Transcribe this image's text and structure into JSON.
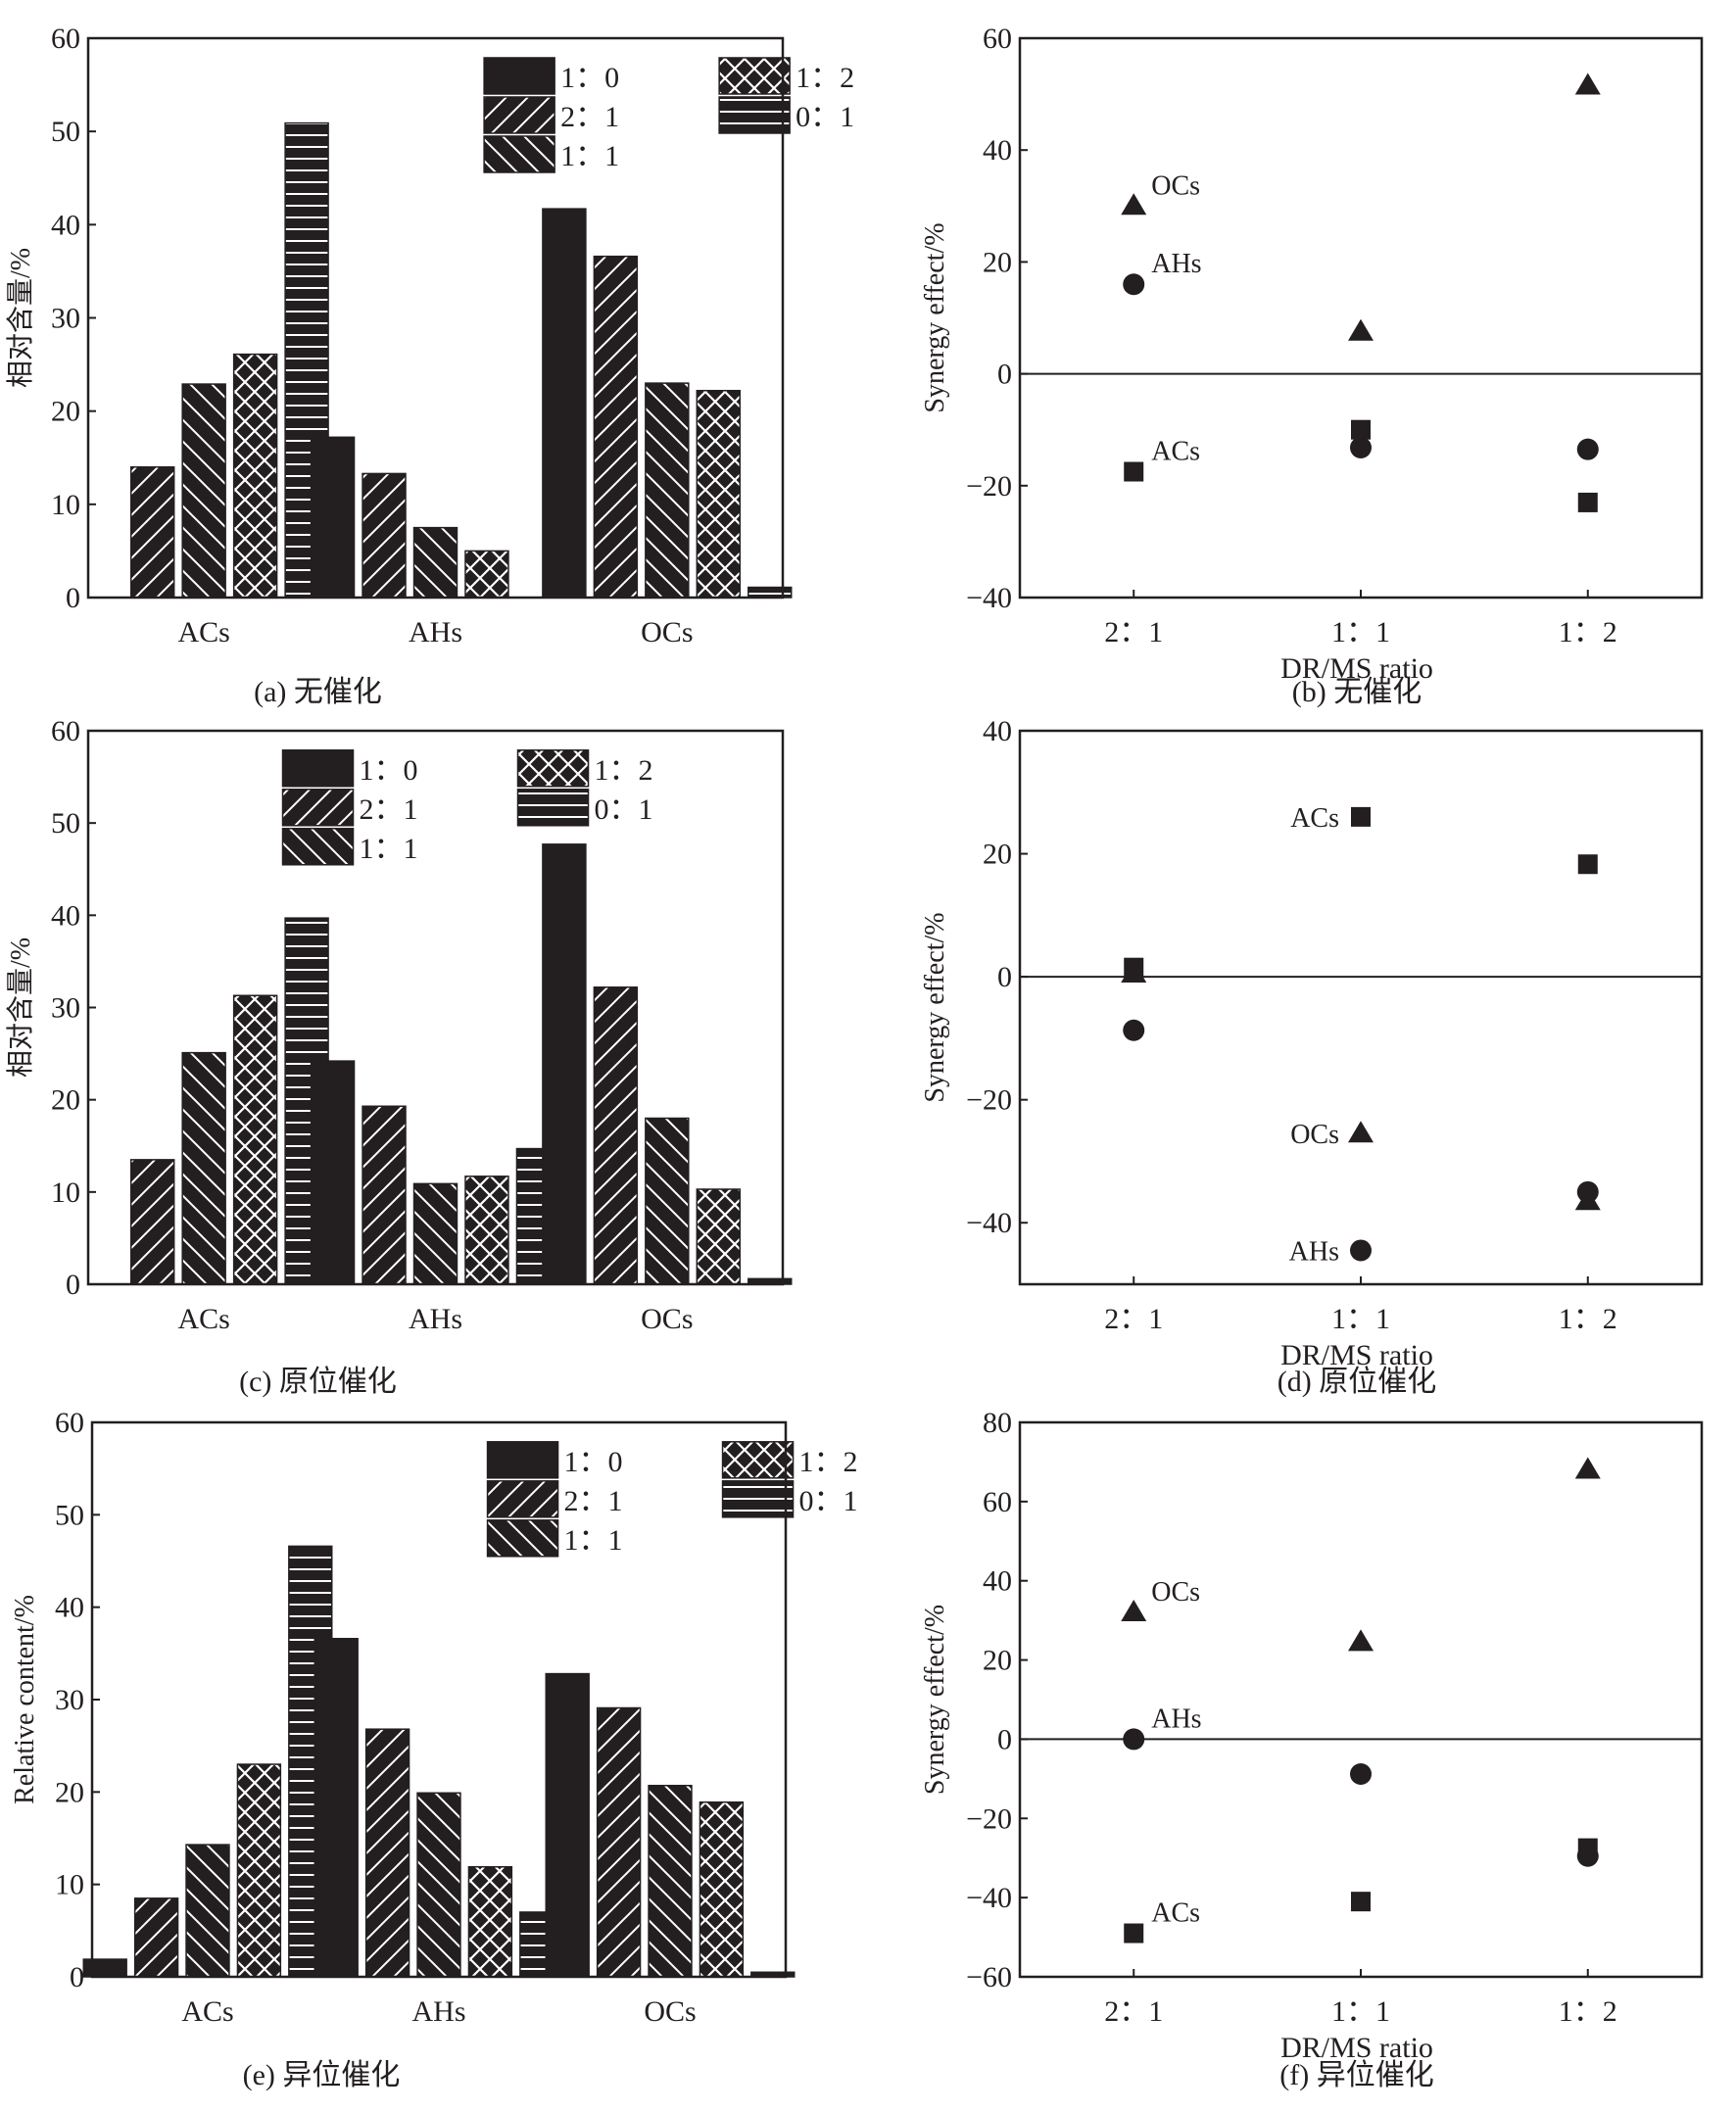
{
  "chart_data": [
    {
      "panel": "a",
      "type": "bar",
      "title": "",
      "caption": "(a) 无催化",
      "xlabel": "",
      "ylabel": "相对含量/%",
      "ylim": [
        0,
        60
      ],
      "yticks": [
        0,
        10,
        20,
        30,
        40,
        50,
        60
      ],
      "categories": [
        "ACs",
        "AHs",
        "OCs"
      ],
      "legend_position": "top-right",
      "series": [
        {
          "name": "1：0",
          "pattern": "solid",
          "values": [
            0,
            17.2,
            41.7
          ]
        },
        {
          "name": "2：1",
          "pattern": "slash",
          "values": [
            14.0,
            13.3,
            36.6
          ]
        },
        {
          "name": "1：1",
          "pattern": "backslash",
          "values": [
            22.9,
            7.5,
            23.0
          ]
        },
        {
          "name": "1：2",
          "pattern": "cross",
          "values": [
            26.1,
            5.0,
            22.2
          ]
        },
        {
          "name": "0：1",
          "pattern": "horizontal",
          "values": [
            50.9,
            0,
            1.1
          ]
        }
      ]
    },
    {
      "panel": "b",
      "type": "scatter",
      "title": "",
      "caption": "(b) 无催化",
      "xlabel": "DR/MS ratio",
      "ylabel": "Synergy effect/%",
      "ylim": [
        -40,
        60
      ],
      "yticks": [
        -40,
        -20,
        0,
        20,
        40,
        60
      ],
      "categories": [
        "2：1",
        "1：1",
        "1：2"
      ],
      "zero_line": true,
      "series": [
        {
          "name": "ACs",
          "marker": "square",
          "values": [
            -17.5,
            -10.0,
            -23.0
          ],
          "label_at": 0,
          "label_side": "right"
        },
        {
          "name": "AHs",
          "marker": "circle",
          "values": [
            16.0,
            -13.2,
            -13.5
          ],
          "label_at": 0,
          "label_side": "right"
        },
        {
          "name": "OCs",
          "marker": "triangle",
          "values": [
            30.0,
            7.5,
            51.5
          ],
          "label_at": 0,
          "label_side": "right"
        }
      ]
    },
    {
      "panel": "c",
      "type": "bar",
      "title": "",
      "caption": "(c) 原位催化",
      "xlabel": "",
      "ylabel": "相对含量/%",
      "ylim": [
        0,
        60
      ],
      "yticks": [
        0,
        10,
        20,
        30,
        40,
        50,
        60
      ],
      "categories": [
        "ACs",
        "AHs",
        "OCs"
      ],
      "legend_position": "top-center",
      "series": [
        {
          "name": "1：0",
          "pattern": "solid",
          "values": [
            0,
            24.2,
            47.7
          ]
        },
        {
          "name": "2：1",
          "pattern": "slash",
          "values": [
            13.5,
            19.3,
            32.2
          ]
        },
        {
          "name": "1：1",
          "pattern": "backslash",
          "values": [
            25.1,
            10.9,
            18.0
          ]
        },
        {
          "name": "1：2",
          "pattern": "cross",
          "values": [
            31.3,
            11.7,
            10.3
          ]
        },
        {
          "name": "0：1",
          "pattern": "horizontal",
          "values": [
            39.7,
            14.7,
            0.6
          ]
        }
      ]
    },
    {
      "panel": "d",
      "type": "scatter",
      "title": "",
      "caption": "(d) 原位催化",
      "xlabel": "DR/MS ratio",
      "ylabel": "Synergy effect/%",
      "ylim": [
        -50,
        40
      ],
      "yticks": [
        -40,
        -20,
        0,
        20,
        40
      ],
      "categories": [
        "2：1",
        "1：1",
        "1：2"
      ],
      "zero_line": true,
      "series": [
        {
          "name": "ACs",
          "marker": "square",
          "values": [
            1.5,
            26.0,
            18.3
          ],
          "label_at": 1,
          "label_side": "left"
        },
        {
          "name": "AHs",
          "marker": "circle",
          "values": [
            -8.7,
            -44.5,
            -35.0
          ],
          "label_at": 1,
          "label_side": "left"
        },
        {
          "name": "OCs",
          "marker": "triangle",
          "values": [
            0.5,
            -25.5,
            -36.5
          ],
          "label_at": 1,
          "label_side": "left"
        }
      ]
    },
    {
      "panel": "e",
      "type": "bar",
      "title": "",
      "caption": "(e) 异位催化",
      "xlabel": "",
      "ylabel": "Relative content/%",
      "ylim": [
        0,
        60
      ],
      "yticks": [
        0,
        10,
        20,
        30,
        40,
        50,
        60
      ],
      "categories": [
        "ACs",
        "AHs",
        "OCs"
      ],
      "legend_position": "top-right",
      "series": [
        {
          "name": "1：0",
          "pattern": "solid",
          "values": [
            1.9,
            36.6,
            32.8
          ]
        },
        {
          "name": "2：1",
          "pattern": "slash",
          "values": [
            8.5,
            26.8,
            29.1
          ]
        },
        {
          "name": "1：1",
          "pattern": "backslash",
          "values": [
            14.3,
            19.9,
            20.7
          ]
        },
        {
          "name": "1：2",
          "pattern": "cross",
          "values": [
            23.0,
            11.9,
            18.9
          ]
        },
        {
          "name": "0：1",
          "pattern": "horizontal",
          "values": [
            46.6,
            7.0,
            0.5
          ]
        }
      ]
    },
    {
      "panel": "f",
      "type": "scatter",
      "title": "",
      "caption": "(f) 异位催化",
      "xlabel": "DR/MS ratio",
      "ylabel": "Synergy effect/%",
      "ylim": [
        -60,
        80
      ],
      "yticks": [
        -60,
        -40,
        -20,
        0,
        20,
        40,
        60,
        80
      ],
      "categories": [
        "2：1",
        "1：1",
        "1：2"
      ],
      "zero_line": true,
      "series": [
        {
          "name": "ACs",
          "marker": "square",
          "values": [
            -49.0,
            -41.0,
            -27.5
          ],
          "label_at": 0,
          "label_side": "right"
        },
        {
          "name": "AHs",
          "marker": "circle",
          "values": [
            0.0,
            -8.8,
            -29.5
          ],
          "label_at": 0,
          "label_side": "right"
        },
        {
          "name": "OCs",
          "marker": "triangle",
          "values": [
            32.0,
            24.5,
            68.0
          ],
          "label_at": 0,
          "label_side": "right"
        }
      ]
    }
  ],
  "colors": {
    "ink": "#231f20",
    "hatch_line": "#ffffff",
    "background": "#ffffff"
  }
}
